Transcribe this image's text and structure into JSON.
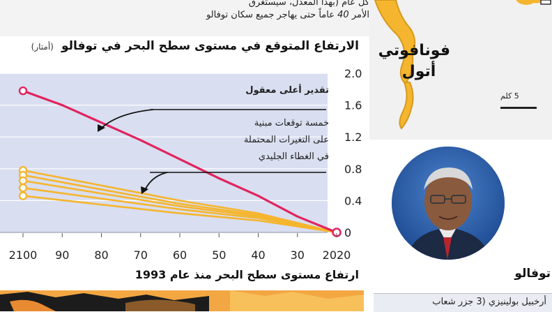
{
  "intro": {
    "line1": "كل عام (بهذا المعدل، سيستغرق",
    "line2_prefix": "الأمر",
    "line2_number": "40",
    "line2_suffix": "عاماً حتى يهاجر جميع سكان توفالو"
  },
  "chart_data": {
    "type": "line",
    "title": "الارتفاع المتوقع في مستوى سطح البحر في توفالو",
    "unit": "(أمتار)",
    "x_ticks": [
      "2100",
      "90",
      "80",
      "70",
      "60",
      "50",
      "40",
      "30",
      "2020"
    ],
    "y_ticks": [
      "2.0",
      "1.6",
      "1.2",
      "0.8",
      "0.4",
      "0"
    ],
    "xlim": [
      2020,
      2100
    ],
    "ylim": [
      0,
      2.0
    ],
    "x_reversed": true,
    "grid": "horizontal",
    "series": [
      {
        "name": "تقدير أعلى معقول",
        "color": "#e0245e",
        "points": [
          [
            2100,
            1.78
          ],
          [
            2090,
            1.6
          ],
          [
            2080,
            1.38
          ],
          [
            2070,
            1.16
          ],
          [
            2060,
            0.92
          ],
          [
            2050,
            0.68
          ],
          [
            2040,
            0.46
          ],
          [
            2030,
            0.2
          ],
          [
            2020,
            0.0
          ]
        ]
      },
      {
        "name": "",
        "color": "#f5b52e",
        "points": [
          [
            2100,
            0.78
          ],
          [
            2060,
            0.4
          ],
          [
            2040,
            0.24
          ],
          [
            2020,
            0.0
          ]
        ]
      },
      {
        "name": "",
        "color": "#f5b52e",
        "points": [
          [
            2100,
            0.72
          ],
          [
            2060,
            0.36
          ],
          [
            2040,
            0.22
          ],
          [
            2020,
            0.0
          ]
        ]
      },
      {
        "name": "",
        "color": "#f5b52e",
        "points": [
          [
            2100,
            0.65
          ],
          [
            2060,
            0.33
          ],
          [
            2040,
            0.2
          ],
          [
            2020,
            0.0
          ]
        ]
      },
      {
        "name": "",
        "color": "#f5b52e",
        "points": [
          [
            2100,
            0.56
          ],
          [
            2060,
            0.29
          ],
          [
            2040,
            0.18
          ],
          [
            2020,
            0.0
          ]
        ]
      },
      {
        "name": "",
        "color": "#f5b52e",
        "points": [
          [
            2100,
            0.46
          ],
          [
            2060,
            0.24
          ],
          [
            2040,
            0.15
          ],
          [
            2020,
            0.0
          ]
        ]
      }
    ],
    "annotations": {
      "upper": "تقدير أعلى معقول",
      "lower_line1": "خمسة توقعات مبنية",
      "lower_line2": "على التغيرات المحتملة",
      "lower_line3": "في الغطاء الجليدي"
    },
    "plot_bg": "#d9def0",
    "pink": "#e0245e",
    "yellow": "#f5b52e"
  },
  "bottom": {
    "title": "ارتفاع مستوى سطح البحر منذ عام 1993"
  },
  "map": {
    "atoll_name_line1": "فونافوتي",
    "atoll_name_line2": "أتول",
    "scale": "5 كلم",
    "land_color": "#f5b52e"
  },
  "portrait": {
    "country": "توفالو"
  },
  "info": {
    "text": "أرخبيل بولينيزي (3 جزر شعاب"
  }
}
